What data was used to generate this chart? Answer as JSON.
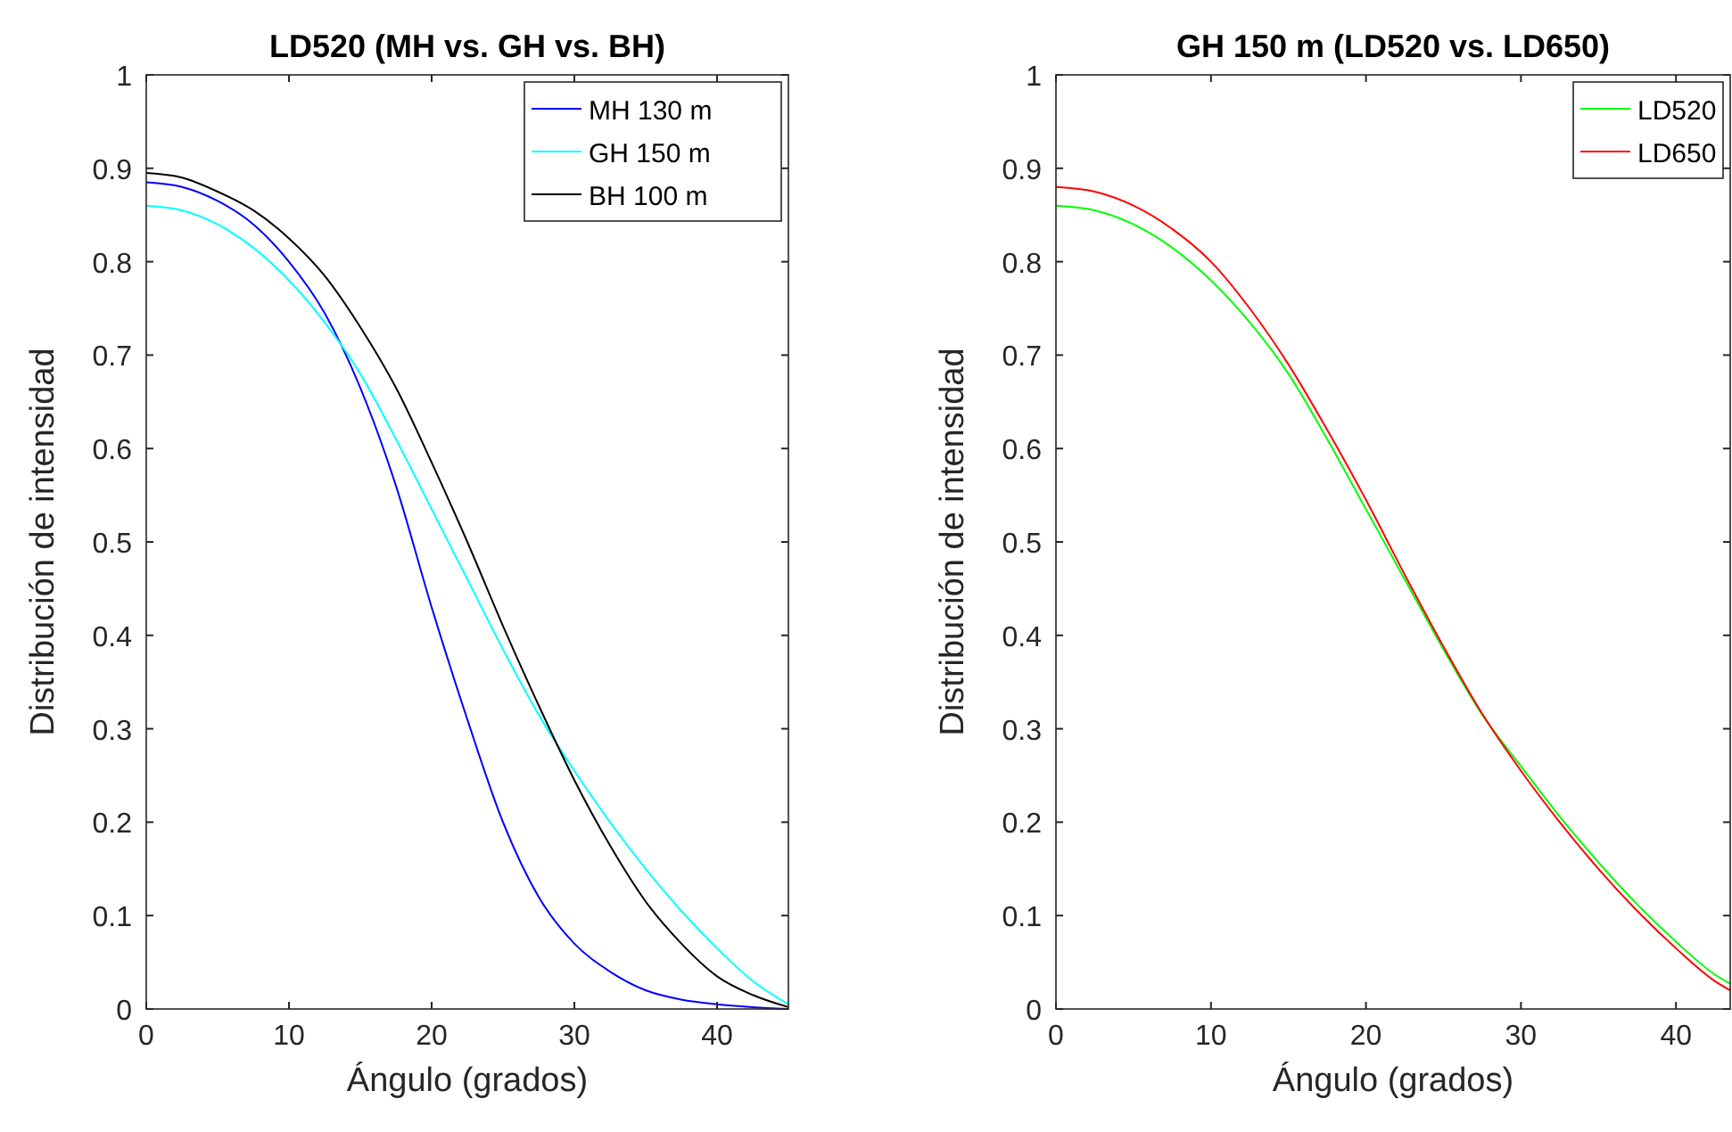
{
  "chart_data": [
    {
      "type": "line",
      "title": "LD520 (MH vs. GH vs. BH)",
      "xlabel": "Ángulo (grados)",
      "ylabel": "Distribución de intensidad",
      "x": [
        0,
        2.5,
        5,
        7.5,
        10,
        12.5,
        15,
        17.5,
        20,
        22.5,
        25,
        27.5,
        30,
        32.5,
        35,
        37.5,
        40,
        42.5,
        45
      ],
      "xlim": [
        0,
        45
      ],
      "xticks": [
        0,
        10,
        20,
        30,
        40
      ],
      "ylim": [
        0,
        1
      ],
      "yticks": [
        0,
        0.1,
        0.2,
        0.3,
        0.4,
        0.5,
        0.6,
        0.7,
        0.8,
        0.9,
        1
      ],
      "grid": false,
      "legend": "top right",
      "series": [
        {
          "name": "MH 130 m",
          "color": "#0000ff",
          "values": [
            0.885,
            0.88,
            0.865,
            0.84,
            0.8,
            0.745,
            0.665,
            0.56,
            0.43,
            0.31,
            0.2,
            0.12,
            0.07,
            0.04,
            0.02,
            0.01,
            0.005,
            0.002,
            0
          ]
        },
        {
          "name": "GH 150 m",
          "color": "#00ffff",
          "values": [
            0.86,
            0.855,
            0.84,
            0.815,
            0.78,
            0.735,
            0.68,
            0.61,
            0.535,
            0.46,
            0.385,
            0.315,
            0.255,
            0.2,
            0.15,
            0.105,
            0.065,
            0.03,
            0.005
          ]
        },
        {
          "name": "BH 100 m",
          "color": "#000000",
          "values": [
            0.895,
            0.89,
            0.875,
            0.855,
            0.825,
            0.785,
            0.73,
            0.665,
            0.585,
            0.5,
            0.41,
            0.325,
            0.245,
            0.175,
            0.115,
            0.07,
            0.035,
            0.015,
            0.002
          ]
        }
      ]
    },
    {
      "type": "line",
      "title": "GH 150 m (LD520 vs. LD650)",
      "xlabel": "Ángulo (grados)",
      "ylabel": "Distribución de intensidad",
      "x": [
        0,
        2.5,
        5,
        7.5,
        10,
        12.5,
        15,
        17.5,
        20,
        22.5,
        25,
        27.5,
        30,
        32.5,
        35,
        37.5,
        40,
        42.5,
        43.5
      ],
      "xlim": [
        0,
        43.5
      ],
      "xticks": [
        0,
        10,
        20,
        30,
        40
      ],
      "ylim": [
        0,
        1
      ],
      "yticks": [
        0,
        0.1,
        0.2,
        0.3,
        0.4,
        0.5,
        0.6,
        0.7,
        0.8,
        0.9,
        1
      ],
      "grid": false,
      "legend": "top right",
      "series": [
        {
          "name": "LD520",
          "color": "#00ff00",
          "values": [
            0.86,
            0.855,
            0.84,
            0.815,
            0.78,
            0.735,
            0.68,
            0.61,
            0.535,
            0.46,
            0.385,
            0.315,
            0.26,
            0.206,
            0.157,
            0.112,
            0.072,
            0.037,
            0.027
          ]
        },
        {
          "name": "LD650",
          "color": "#ff0000",
          "values": [
            0.88,
            0.875,
            0.86,
            0.835,
            0.8,
            0.75,
            0.69,
            0.62,
            0.545,
            0.465,
            0.388,
            0.316,
            0.255,
            0.2,
            0.15,
            0.105,
            0.065,
            0.03,
            0.02
          ]
        }
      ]
    }
  ]
}
